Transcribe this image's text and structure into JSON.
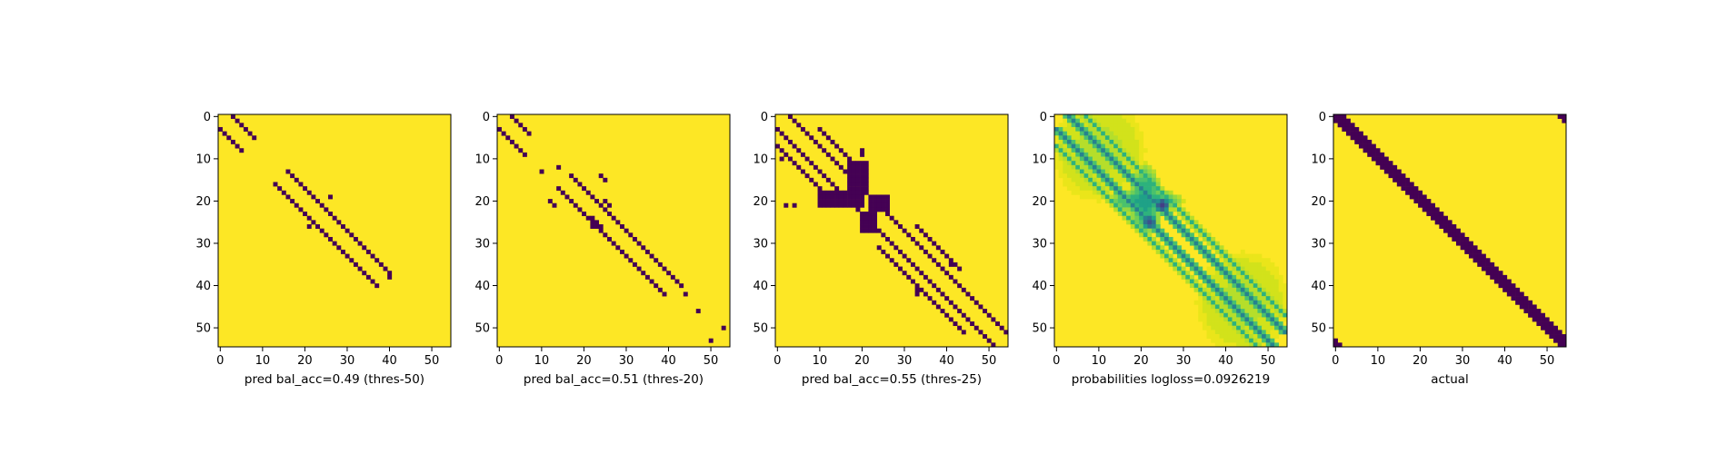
{
  "chart_data": [
    {
      "type": "heatmap",
      "title": "",
      "xlabel": "pred bal_acc=0.49 (thres-50)",
      "ylabel": "",
      "colormap": "viridis",
      "grid_size": 55,
      "xlim": [
        0,
        54
      ],
      "ylim": [
        54,
        0
      ],
      "xticks": [
        0,
        10,
        20,
        30,
        40,
        50
      ],
      "yticks": [
        0,
        10,
        20,
        30,
        40,
        50
      ],
      "low_value_color": "#440154",
      "high_value_color": "#fde725",
      "low_cells": [
        {
          "diagonal_offset": 3,
          "row_from": 0,
          "row_to": 5
        },
        {
          "diagonal_offset": -3,
          "row_from": 3,
          "row_to": 8
        },
        {
          "diagonal_offset": 3,
          "row_from": 13,
          "row_to": 37
        },
        {
          "diagonal_offset": -3,
          "row_from": 16,
          "row_to": 40
        }
      ],
      "extra_low_points": [
        [
          26,
          19
        ],
        [
          21,
          26
        ],
        [
          32,
          29
        ],
        [
          40,
          38
        ]
      ]
    },
    {
      "type": "heatmap",
      "title": "",
      "xlabel": "pred bal_acc=0.51 (thres-20)",
      "ylabel": "",
      "colormap": "viridis",
      "grid_size": 55,
      "xlim": [
        0,
        54
      ],
      "ylim": [
        54,
        0
      ],
      "xticks": [
        0,
        10,
        20,
        30,
        40,
        50
      ],
      "yticks": [
        0,
        10,
        20,
        30,
        40,
        50
      ],
      "low_value_color": "#440154",
      "high_value_color": "#fde725",
      "low_cells": [
        {
          "diagonal_offset": 3,
          "row_from": 0,
          "row_to": 4
        },
        {
          "diagonal_offset": -3,
          "row_from": 3,
          "row_to": 9
        },
        {
          "diagonal_offset": 3,
          "row_from": 14,
          "row_to": 40
        },
        {
          "diagonal_offset": -3,
          "row_from": 17,
          "row_to": 42
        }
      ],
      "extra_low_points": [
        [
          10,
          13
        ],
        [
          12,
          20
        ],
        [
          13,
          21
        ],
        [
          14,
          12
        ],
        [
          23,
          20
        ],
        [
          24,
          21
        ],
        [
          25,
          20
        ],
        [
          26,
          21
        ],
        [
          24,
          14
        ],
        [
          25,
          15
        ],
        [
          22,
          24
        ],
        [
          23,
          25
        ],
        [
          22,
          26
        ],
        [
          24,
          26
        ],
        [
          44,
          42
        ],
        [
          47,
          46
        ],
        [
          50,
          53
        ],
        [
          53,
          50
        ]
      ]
    },
    {
      "type": "heatmap",
      "title": "",
      "xlabel": "pred bal_acc=0.55 (thres-25)",
      "ylabel": "",
      "colormap": "viridis",
      "grid_size": 55,
      "xlim": [
        0,
        54
      ],
      "ylim": [
        54,
        0
      ],
      "xticks": [
        0,
        10,
        20,
        30,
        40,
        50
      ],
      "yticks": [
        0,
        10,
        20,
        30,
        40,
        50
      ],
      "low_value_color": "#440154",
      "high_value_color": "#fde725",
      "low_cells": [
        {
          "diagonal_offset": 3,
          "row_from": 0,
          "row_to": 51
        },
        {
          "diagonal_offset": -3,
          "row_from": 3,
          "row_to": 54
        },
        {
          "diagonal_offset": 7,
          "row_from": 3,
          "row_to": 12
        },
        {
          "diagonal_offset": -7,
          "row_from": 7,
          "row_to": 20
        },
        {
          "diagonal_offset": 7,
          "row_from": 26,
          "row_to": 35
        },
        {
          "diagonal_offset": -7,
          "row_from": 31,
          "row_to": 51
        }
      ],
      "low_blocks": [
        {
          "x_from": 10,
          "x_to": 20,
          "y_from": 18,
          "y_to": 21
        },
        {
          "x_from": 17,
          "x_to": 21,
          "y_from": 11,
          "y_to": 17
        },
        {
          "x_from": 22,
          "x_to": 26,
          "y_from": 19,
          "y_to": 22
        },
        {
          "x_from": 20,
          "x_to": 23,
          "y_from": 23,
          "y_to": 27
        }
      ],
      "extra_low_points": [
        [
          1,
          10
        ],
        [
          2,
          21
        ],
        [
          4,
          21
        ],
        [
          20,
          8
        ],
        [
          20,
          9
        ],
        [
          41,
          35
        ],
        [
          43,
          36
        ],
        [
          33,
          41
        ],
        [
          33,
          42
        ]
      ]
    },
    {
      "type": "heatmap",
      "title": "",
      "xlabel": "probabilities logloss=0.0926219",
      "ylabel": "",
      "colormap": "viridis",
      "grid_size": 55,
      "xlim": [
        0,
        54
      ],
      "ylim": [
        54,
        0
      ],
      "xticks": [
        0,
        10,
        20,
        30,
        40,
        50
      ],
      "yticks": [
        0,
        10,
        20,
        30,
        40,
        50
      ],
      "palette": [
        "#fde725",
        "#eae51a",
        "#d2e21b",
        "#b5de2b",
        "#95d840",
        "#6ece58",
        "#4ac16d",
        "#2db27d",
        "#1fa187",
        "#21918c",
        "#26828e",
        "#2c728e",
        "#33638d",
        "#3b528b",
        "#433e85",
        "#482878"
      ],
      "bands": [
        {
          "diagonal_offset": 3,
          "row_from": 0,
          "row_to": 51,
          "level": 10
        },
        {
          "diagonal_offset": -3,
          "row_from": 3,
          "row_to": 54,
          "level": 10
        },
        {
          "diagonal_offset": 7,
          "row_from": 0,
          "row_to": 47,
          "level": 7
        },
        {
          "diagonal_offset": -7,
          "row_from": 7,
          "row_to": 54,
          "level": 7
        }
      ],
      "blobs": [
        {
          "x": 21,
          "y": 20,
          "rx": 4,
          "ry": 9,
          "level": 8
        },
        {
          "x": 21,
          "y": 20,
          "rx": 9,
          "ry": 3,
          "level": 8
        },
        {
          "x": 25,
          "y": 21,
          "rx": 2,
          "ry": 2,
          "level": 14
        },
        {
          "x": 22,
          "y": 25,
          "rx": 2,
          "ry": 2,
          "level": 13
        },
        {
          "x": 10,
          "y": 8,
          "rx": 11,
          "ry": 12,
          "level": 3
        },
        {
          "x": 44,
          "y": 44,
          "rx": 11,
          "ry": 12,
          "level": 3
        }
      ]
    },
    {
      "type": "heatmap",
      "title": "",
      "xlabel": "actual",
      "ylabel": "",
      "colormap": "viridis",
      "grid_size": 55,
      "xlim": [
        0,
        54
      ],
      "ylim": [
        54,
        0
      ],
      "xticks": [
        0,
        10,
        20,
        30,
        40,
        50
      ],
      "yticks": [
        0,
        10,
        20,
        30,
        40,
        50
      ],
      "low_value_color": "#440154",
      "high_value_color": "#fde725",
      "low_cells": [
        {
          "diagonal_offset": -1,
          "row_from": 1,
          "row_to": 54
        },
        {
          "diagonal_offset": 0,
          "row_from": 0,
          "row_to": 54
        },
        {
          "diagonal_offset": 1,
          "row_from": 0,
          "row_to": 53
        },
        {
          "diagonal_offset": 2,
          "row_from": 0,
          "row_to": 52
        }
      ],
      "extra_low_points": [
        [
          53,
          0
        ],
        [
          54,
          0
        ],
        [
          54,
          1
        ],
        [
          0,
          53
        ],
        [
          0,
          54
        ],
        [
          1,
          54
        ]
      ]
    }
  ]
}
